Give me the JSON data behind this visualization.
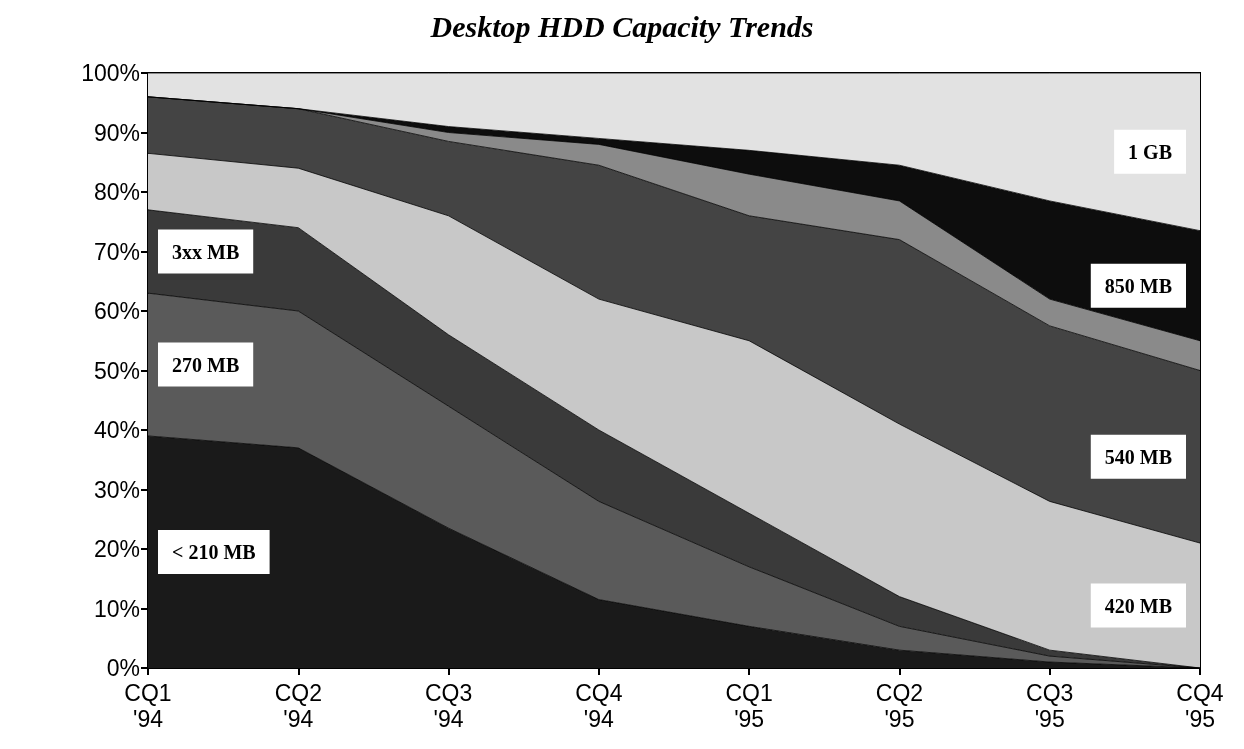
{
  "chart_data": {
    "type": "area",
    "stacked": true,
    "title": "Desktop HDD Capacity Trends",
    "categories": [
      "CQ1 '94",
      "CQ2 '94",
      "CQ3 '94",
      "CQ4 '94",
      "CQ1 '95",
      "CQ2 '95",
      "CQ3 '95",
      "CQ4 '95"
    ],
    "series": [
      {
        "name": "< 210 MB",
        "color": "#1a1a1a",
        "values": [
          39,
          37,
          23.5,
          11.5,
          7,
          3,
          1,
          0
        ]
      },
      {
        "name": "270 MB",
        "color": "#5a5a5a",
        "values": [
          24,
          23,
          20.5,
          16.5,
          10,
          4,
          1,
          0
        ]
      },
      {
        "name": "3xx MB",
        "color": "#3a3a3a",
        "values": [
          14,
          14,
          12,
          12,
          9,
          5,
          1,
          0
        ]
      },
      {
        "name": "420 MB",
        "color": "#c8c8c8",
        "values": [
          9.5,
          10,
          20,
          22,
          29,
          29,
          25,
          21
        ]
      },
      {
        "name": "540 MB",
        "color": "#444444",
        "values": [
          9.5,
          10,
          12.5,
          22.5,
          21,
          31,
          29.5,
          29
        ]
      },
      {
        "color": "#8a8a8a",
        "values": [
          0,
          0,
          1.5,
          3.5,
          7,
          6.5,
          4.5,
          5
        ]
      },
      {
        "name": "850 MB",
        "color": "#0d0d0d",
        "values": [
          0,
          0,
          1,
          1,
          4,
          6,
          16.5,
          18.5
        ]
      },
      {
        "name": "1 GB",
        "color": "#e2e2e2",
        "values": [
          4,
          6,
          9,
          11,
          13,
          15.5,
          21.5,
          26.5
        ]
      }
    ],
    "ylim": [
      0,
      100
    ],
    "yticks": [
      {
        "value": 0,
        "label": "0%"
      },
      {
        "value": 10,
        "label": "10%"
      },
      {
        "value": 20,
        "label": "20%"
      },
      {
        "value": 30,
        "label": "30%"
      },
      {
        "value": 40,
        "label": "40%"
      },
      {
        "value": 50,
        "label": "50%"
      },
      {
        "value": 60,
        "label": "60%"
      },
      {
        "value": 70,
        "label": "70%"
      },
      {
        "value": 80,
        "label": "80%"
      },
      {
        "value": 90,
        "label": "90%"
      },
      {
        "value": 100,
        "label": "100%"
      }
    ],
    "grid": false,
    "legend": false
  }
}
